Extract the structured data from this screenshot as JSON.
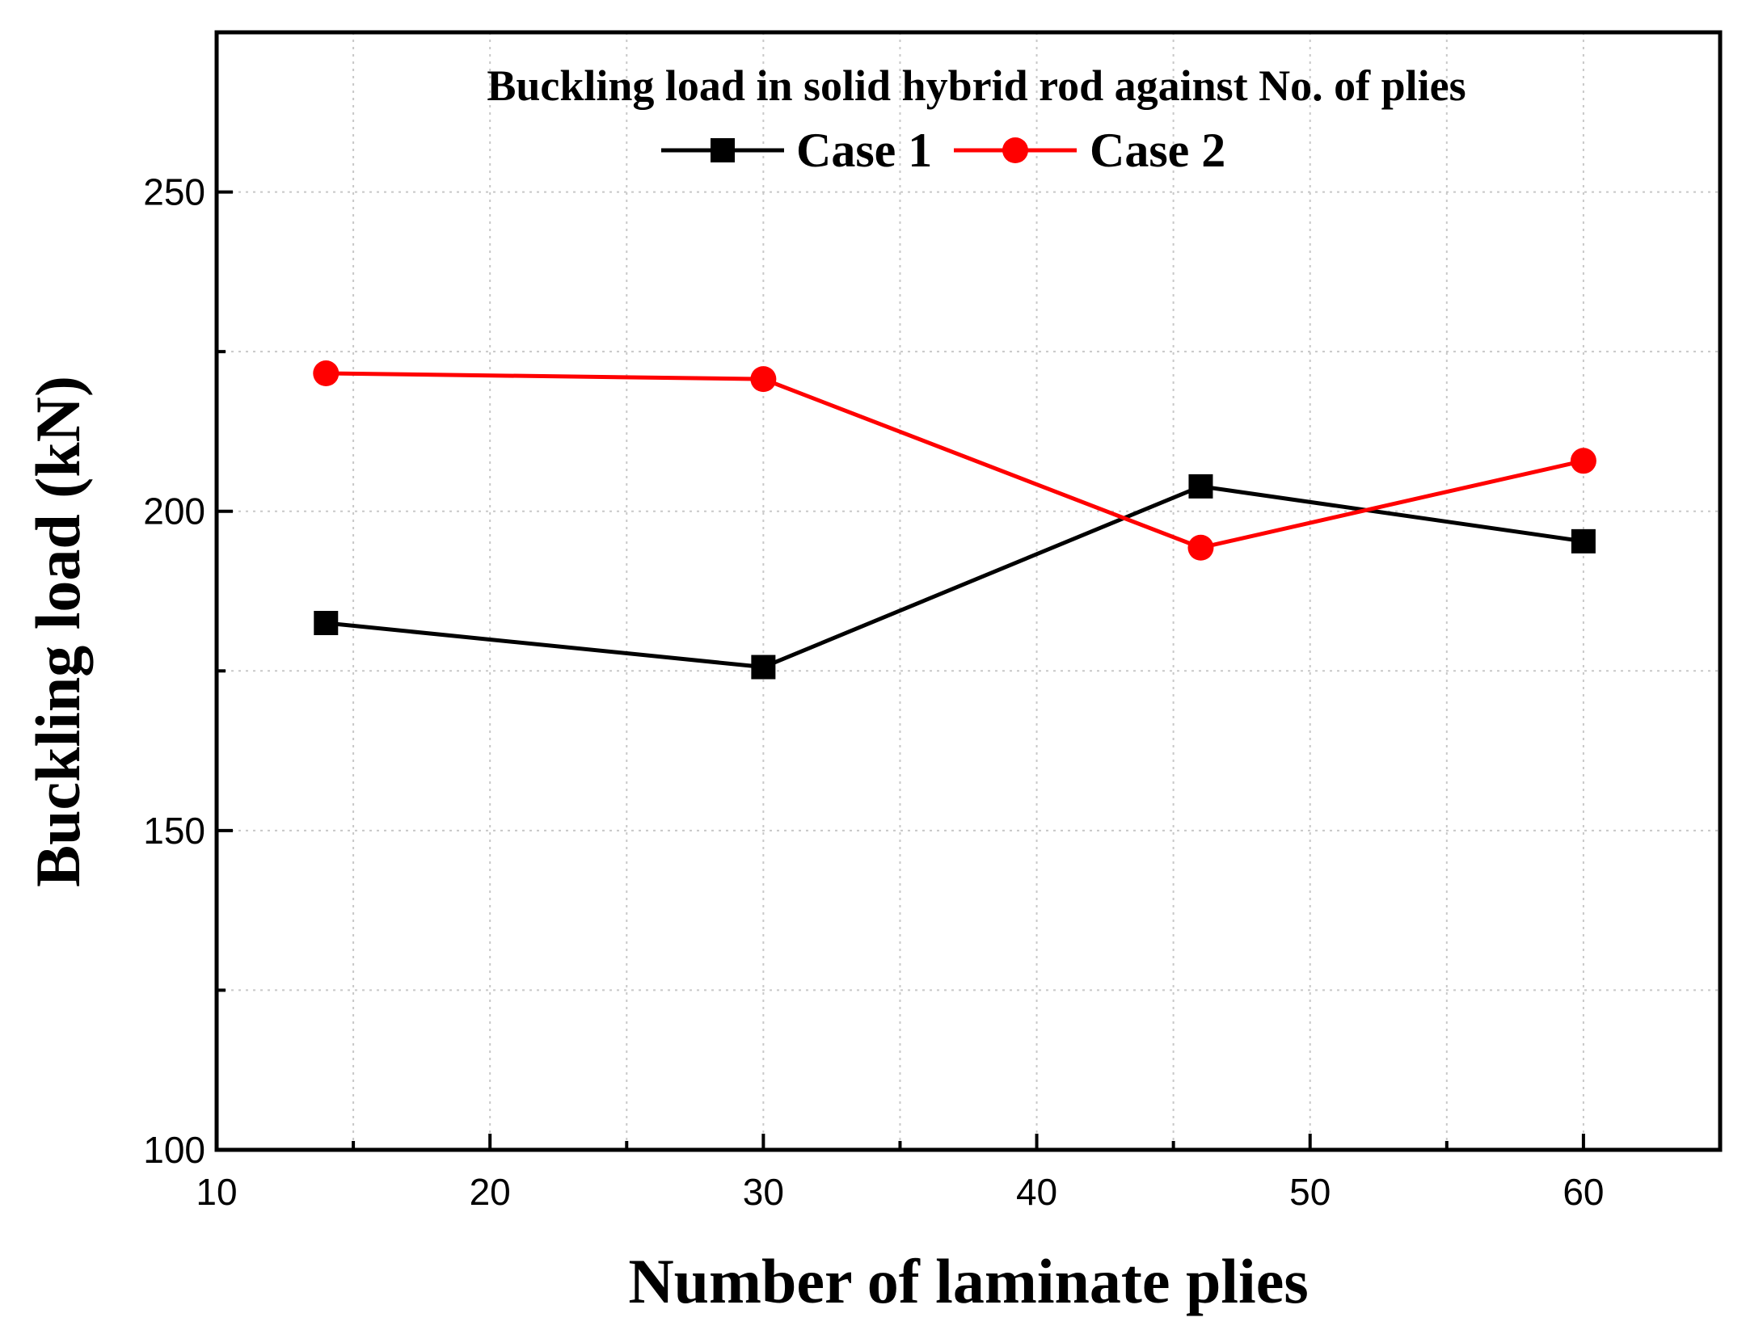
{
  "chart_data": {
    "type": "line",
    "title": "Buckling load in solid hybrid rod against No. of plies",
    "xlabel": "Number of laminate plies",
    "ylabel": "Buckling load (kN)",
    "xlim": [
      10,
      65
    ],
    "ylim": [
      100,
      275
    ],
    "x_ticks": [
      10,
      20,
      30,
      40,
      50,
      60
    ],
    "x_minor_ticks": [
      15,
      25,
      35,
      45,
      55
    ],
    "y_ticks": [
      100,
      150,
      200,
      250
    ],
    "y_minor_ticks": [
      125,
      175,
      225,
      275
    ],
    "grid": true,
    "legend_position": "top-center",
    "series": [
      {
        "name": "Case 1",
        "color": "#000000",
        "marker": "square",
        "x": [
          14,
          30,
          46,
          60
        ],
        "values": [
          182.5,
          175.6,
          203.9,
          195.3
        ]
      },
      {
        "name": "Case 2",
        "color": "#ff0000",
        "marker": "circle",
        "x": [
          14,
          30,
          46,
          60
        ],
        "values": [
          221.6,
          220.7,
          194.3,
          207.9
        ]
      }
    ]
  }
}
